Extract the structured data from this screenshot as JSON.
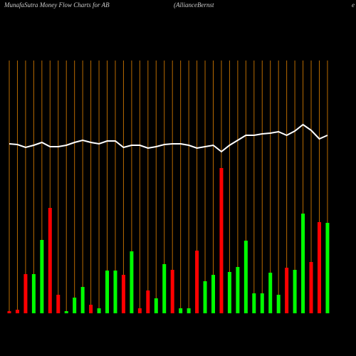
{
  "chart_data": {
    "type": "bar",
    "title": "MunafaSutra  Money Flow  Charts for AB",
    "subtitle": "(AllianceBernst",
    "title_tail": "e",
    "ylim": [
      0,
      440
    ],
    "values": [
      3,
      5,
      55,
      55,
      103,
      148,
      26,
      3,
      22,
      37,
      12,
      7,
      60,
      60,
      54,
      87,
      7,
      32,
      21,
      69,
      61,
      7,
      7,
      88,
      45,
      54,
      204,
      58,
      65,
      102,
      28,
      28,
      57,
      26,
      64,
      61,
      140,
      72,
      128,
      127
    ],
    "colors": [
      "#ff0000",
      "#ff0000",
      "#ff0000",
      "#00ff00",
      "#00ff00",
      "#ff0000",
      "#ff0000",
      "#00ff00",
      "#00ff00",
      "#00ff00",
      "#ff0000",
      "#00ff00",
      "#00ff00",
      "#00ff00",
      "#ff0000",
      "#00ff00",
      "#ff0000",
      "#ff0000",
      "#00ff00",
      "#00ff00",
      "#ff0000",
      "#00ff00",
      "#00ff00",
      "#ff0000",
      "#00ff00",
      "#00ff00",
      "#ff0000",
      "#00ff00",
      "#00ff00",
      "#00ff00",
      "#00ff00",
      "#00ff00",
      "#00ff00",
      "#00ff00",
      "#ff0000",
      "#00ff00",
      "#00ff00",
      "#ff0000",
      "#ff0000",
      "#00ff00"
    ],
    "line": {
      "color": "#ffffff",
      "values": [
        238,
        237,
        233,
        236,
        240,
        234,
        234,
        236,
        240,
        243,
        240,
        238,
        242,
        242,
        233,
        236,
        236,
        232,
        234,
        237,
        238,
        238,
        236,
        232,
        234,
        236,
        227,
        236,
        243,
        250,
        250,
        252,
        253,
        255,
        250,
        256,
        265,
        257,
        245,
        250
      ]
    },
    "grid_color": "#b86a00"
  }
}
